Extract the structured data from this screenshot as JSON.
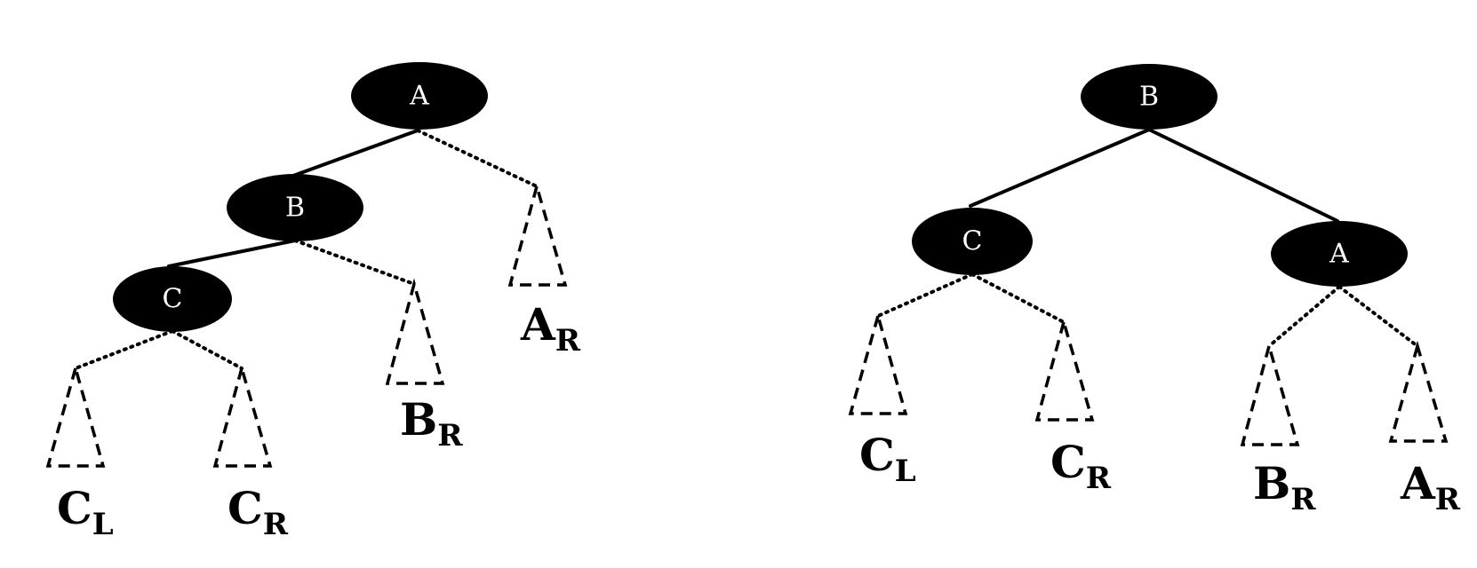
{
  "left_tree": {
    "nodes": [
      {
        "id": "A",
        "label": "A"
      },
      {
        "id": "B",
        "label": "B"
      },
      {
        "id": "C",
        "label": "C"
      }
    ],
    "subtrees": [
      {
        "id": "CL",
        "main": "C",
        "sub": "L"
      },
      {
        "id": "CR",
        "main": "C",
        "sub": "R"
      },
      {
        "id": "BR",
        "main": "B",
        "sub": "R"
      },
      {
        "id": "AR",
        "main": "A",
        "sub": "R"
      }
    ]
  },
  "right_tree": {
    "nodes": [
      {
        "id": "B",
        "label": "B"
      },
      {
        "id": "C",
        "label": "C"
      },
      {
        "id": "A",
        "label": "A"
      }
    ],
    "subtrees": [
      {
        "id": "CL",
        "main": "C",
        "sub": "L"
      },
      {
        "id": "CR",
        "main": "C",
        "sub": "R"
      },
      {
        "id": "BR",
        "main": "B",
        "sub": "R"
      },
      {
        "id": "AR",
        "main": "A",
        "sub": "R"
      }
    ]
  },
  "colors": {
    "node_fill": "#000000",
    "node_text": "#ffffff",
    "line": "#000000"
  }
}
